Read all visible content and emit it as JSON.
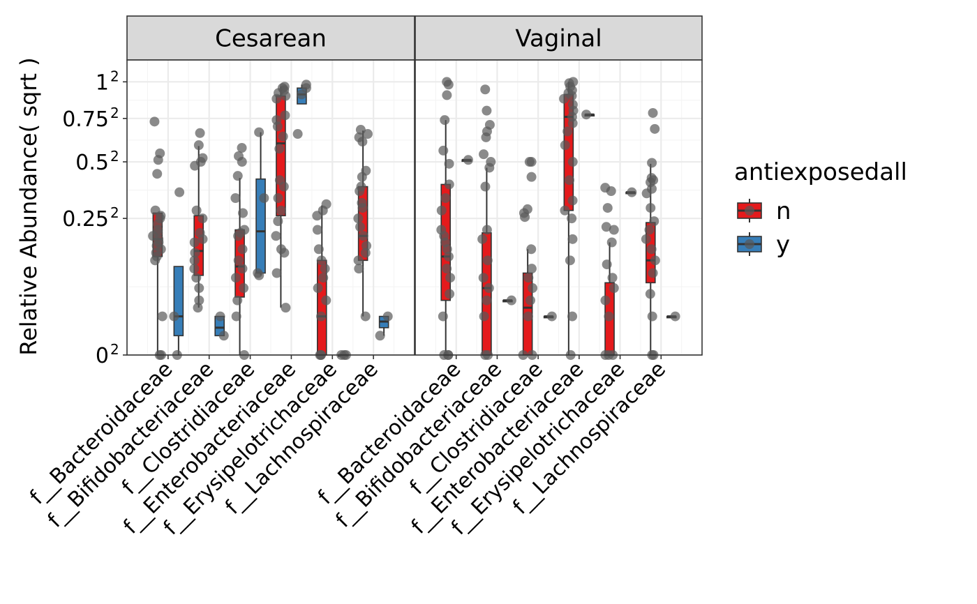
{
  "chart_data": {
    "type": "boxplot",
    "facets": [
      "Cesarean",
      "Vaginal"
    ],
    "categories": [
      "f__Bacteroidaceae",
      "f__Bifidobacteriaceae",
      "f__Clostridiaceae",
      "f__Enterobacteriaceae",
      "f__Erysipelotrichaceae",
      "f__Lachnospiraceae"
    ],
    "ylabel": "Relative Abundance( sqrt )",
    "xlabel": "",
    "y_scale": "sqrt",
    "ylim": [
      0,
      1.08
    ],
    "y_ticks": [
      {
        "value": 0,
        "base": "0",
        "exp": "2"
      },
      {
        "value": 0.25,
        "base": "0.25",
        "exp": "2"
      },
      {
        "value": 0.5,
        "base": "0.5",
        "exp": "2"
      },
      {
        "value": 0.75,
        "base": "0.75",
        "exp": "2"
      },
      {
        "value": 1,
        "base": "1",
        "exp": "2"
      }
    ],
    "legend": {
      "title": "antiexposedall",
      "position": "right",
      "entries": [
        {
          "label": "n",
          "color": "#e41a1c"
        },
        {
          "label": "y",
          "color": "#377eb8"
        }
      ]
    },
    "colors": {
      "n": "#e41a1c",
      "y": "#377eb8",
      "points": "#595959",
      "strip": "#d9d9d9"
    },
    "grid": true,
    "boxes": [
      {
        "facet": 0,
        "category": 0,
        "group": "n",
        "min": 0,
        "q1": 0.13,
        "median": 0.18,
        "q3": 0.27,
        "max": 0.27,
        "points": [
          0.73,
          0.545,
          0.51,
          0.44,
          0.28,
          0.26,
          0.25,
          0.23,
          0.21,
          0.2,
          0.19,
          0.18,
          0.17,
          0.16,
          0.15,
          0.14,
          0.13,
          0.12,
          0.02,
          0,
          0
        ]
      },
      {
        "facet": 0,
        "category": 0,
        "group": "y",
        "min": 0,
        "q1": 0.005,
        "median": 0.02,
        "q3": 0.105,
        "max": 0.105,
        "points": [
          0.355,
          0.02,
          0
        ]
      },
      {
        "facet": 0,
        "category": 1,
        "group": "n",
        "min": 0.03,
        "q1": 0.085,
        "median": 0.145,
        "q3": 0.26,
        "max": 0.585,
        "points": [
          0.66,
          0.59,
          0.52,
          0.5,
          0.48,
          0.28,
          0.25,
          0.2,
          0.18,
          0.17,
          0.14,
          0.12,
          0.1,
          0.08,
          0.06,
          0.04,
          0.03
        ]
      },
      {
        "facet": 0,
        "category": 1,
        "group": "y",
        "min": 0.005,
        "q1": 0.005,
        "median": 0.01,
        "q3": 0.02,
        "max": 0.02,
        "points": [
          0.02,
          0.005
        ]
      },
      {
        "facet": 0,
        "category": 2,
        "group": "n",
        "min": 0,
        "q1": 0.045,
        "median": 0.105,
        "q3": 0.21,
        "max": 0.42,
        "points": [
          0.575,
          0.53,
          0.5,
          0.43,
          0.33,
          0.27,
          0.21,
          0.2,
          0.19,
          0.15,
          0.12,
          0.1,
          0.08,
          0.06,
          0.04,
          0.02,
          0
        ]
      },
      {
        "facet": 0,
        "category": 2,
        "group": "y",
        "min": 0.085,
        "q1": 0.09,
        "median": 0.205,
        "q3": 0.415,
        "max": 0.665,
        "points": [
          0.665,
          0.33,
          0.09,
          0.085
        ]
      },
      {
        "facet": 0,
        "category": 3,
        "group": "n",
        "min": 0.03,
        "q1": 0.26,
        "median": 0.6,
        "q3": 0.9,
        "max": 0.965,
        "points": [
          0.965,
          0.955,
          0.94,
          0.92,
          0.9,
          0.88,
          0.77,
          0.74,
          0.7,
          0.64,
          0.57,
          0.41,
          0.38,
          0.33,
          0.28,
          0.24,
          0.19,
          0.15,
          0.14,
          0.09,
          0.03
        ]
      },
      {
        "facet": 0,
        "category": 3,
        "group": "y",
        "min": 0.845,
        "q1": 0.845,
        "median": 0.91,
        "q3": 0.955,
        "max": 0.98,
        "points": [
          0.98,
          0.955,
          0.91,
          0.655
        ]
      },
      {
        "facet": 0,
        "category": 4,
        "group": "n",
        "min": 0,
        "q1": 0,
        "median": 0.02,
        "q3": 0.12,
        "max": 0.3,
        "points": [
          0.305,
          0.28,
          0.26,
          0.21,
          0.15,
          0.12,
          0.1,
          0.08,
          0.06,
          0.04,
          0.02,
          0,
          0,
          0
        ]
      },
      {
        "facet": 0,
        "category": 4,
        "group": "y",
        "min": 0,
        "q1": 0,
        "median": 0,
        "q3": 0,
        "max": 0,
        "points": [
          0,
          0,
          0
        ]
      },
      {
        "facet": 0,
        "category": 5,
        "group": "n",
        "min": 0.02,
        "q1": 0.12,
        "median": 0.19,
        "q3": 0.38,
        "max": 0.675,
        "points": [
          0.68,
          0.655,
          0.635,
          0.61,
          0.455,
          0.425,
          0.38,
          0.36,
          0.31,
          0.29,
          0.25,
          0.22,
          0.19,
          0.16,
          0.14,
          0.12,
          0.1,
          0.02
        ]
      },
      {
        "facet": 0,
        "category": 5,
        "group": "y",
        "min": 0.005,
        "q1": 0.01,
        "median": 0.015,
        "q3": 0.02,
        "max": 0.02,
        "points": [
          0.02,
          0.005
        ]
      },
      {
        "facet": 1,
        "category": 0,
        "group": "n",
        "min": 0,
        "q1": 0.04,
        "median": 0.13,
        "q3": 0.39,
        "max": 0.74,
        "points": [
          1.0,
          0.98,
          0.905,
          0.74,
          0.56,
          0.49,
          0.39,
          0.33,
          0.28,
          0.21,
          0.19,
          0.17,
          0.15,
          0.13,
          0.1,
          0.08,
          0.05,
          0.02,
          0,
          0,
          0
        ]
      },
      {
        "facet": 1,
        "category": 0,
        "group": "y",
        "min": 0.51,
        "q1": 0.51,
        "median": 0.51,
        "q3": 0.51,
        "max": 0.51,
        "points": [
          0.51
        ]
      },
      {
        "facet": 1,
        "category": 1,
        "group": "n",
        "min": 0,
        "q1": 0,
        "median": 0.06,
        "q3": 0.2,
        "max": 0.47,
        "points": [
          0.945,
          0.8,
          0.71,
          0.67,
          0.635,
          0.54,
          0.5,
          0.47,
          0.38,
          0.21,
          0.18,
          0.12,
          0.08,
          0.06,
          0.04,
          0.02,
          0,
          0
        ]
      },
      {
        "facet": 1,
        "category": 1,
        "group": "y",
        "min": 0.04,
        "q1": 0.04,
        "median": 0.04,
        "q3": 0.04,
        "max": 0.04,
        "points": [
          0.04
        ]
      },
      {
        "facet": 1,
        "category": 2,
        "group": "n",
        "min": 0,
        "q1": 0,
        "median": 0.03,
        "q3": 0.09,
        "max": 0.15,
        "points": [
          0.5,
          0.5,
          0.425,
          0.285,
          0.27,
          0.255,
          0.15,
          0.1,
          0.08,
          0.06,
          0.04,
          0.02,
          0,
          0
        ]
      },
      {
        "facet": 1,
        "category": 2,
        "group": "y",
        "min": 0.02,
        "q1": 0.02,
        "median": 0.02,
        "q3": 0.02,
        "max": 0.02,
        "points": [
          0.02
        ]
      },
      {
        "facet": 1,
        "category": 3,
        "group": "n",
        "min": 0,
        "q1": 0.28,
        "median": 0.76,
        "q3": 0.91,
        "max": 1.0,
        "points": [
          1.0,
          0.99,
          0.965,
          0.94,
          0.92,
          0.9,
          0.88,
          0.84,
          0.8,
          0.76,
          0.72,
          0.67,
          0.59,
          0.5,
          0.41,
          0.32,
          0.28,
          0.25,
          0.18,
          0.12,
          0.02,
          0
        ]
      },
      {
        "facet": 1,
        "category": 3,
        "group": "y",
        "min": 0.775,
        "q1": 0.775,
        "median": 0.775,
        "q3": 0.775,
        "max": 0.775,
        "points": [
          0.775
        ]
      },
      {
        "facet": 1,
        "category": 4,
        "group": "n",
        "min": 0,
        "q1": 0,
        "median": 0,
        "q3": 0.07,
        "max": 0.17,
        "points": [
          0.375,
          0.36,
          0.29,
          0.22,
          0.21,
          0.17,
          0.11,
          0.08,
          0.06,
          0.04,
          0.02,
          0,
          0,
          0
        ]
      },
      {
        "facet": 1,
        "category": 4,
        "group": "y",
        "min": 0.355,
        "q1": 0.355,
        "median": 0.355,
        "q3": 0.355,
        "max": 0.355,
        "points": [
          0.355
        ]
      },
      {
        "facet": 1,
        "category": 5,
        "group": "n",
        "min": 0,
        "q1": 0.07,
        "median": 0.12,
        "q3": 0.235,
        "max": 0.49,
        "points": [
          0.785,
          0.685,
          0.495,
          0.42,
          0.41,
          0.4,
          0.37,
          0.35,
          0.29,
          0.24,
          0.21,
          0.18,
          0.15,
          0.12,
          0.09,
          0.05,
          0.02,
          0,
          0
        ]
      },
      {
        "facet": 1,
        "category": 5,
        "group": "y",
        "min": 0.02,
        "q1": 0.02,
        "median": 0.02,
        "q3": 0.02,
        "max": 0.02,
        "points": [
          0.02
        ]
      }
    ]
  }
}
